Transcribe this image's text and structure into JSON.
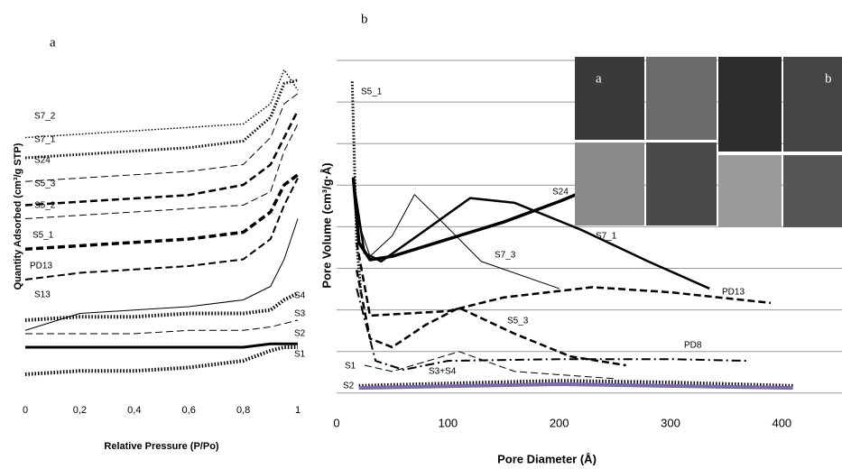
{
  "chart_data": [
    {
      "type": "line",
      "title": "a",
      "x_label": "Relative Pressure (P/Po)",
      "y_label": "Quantity Adsorbed (cm³/g STP)",
      "x": [
        0,
        0.2,
        0.4,
        0.6,
        0.8,
        0.9,
        0.95,
        1
      ],
      "xlim": [
        0,
        1
      ],
      "ylim": [
        0,
        100
      ],
      "xticks": [
        0,
        {
          "value": 0.2,
          "label": "0,2"
        },
        {
          "value": 0.4,
          "label": "0,4"
        },
        {
          "value": 0.6,
          "label": "0,6"
        },
        {
          "value": 0.8,
          "label": "0,8"
        },
        1
      ],
      "series": [
        {
          "name": "S7_2",
          "color": "#000000",
          "style": "dotted",
          "width": 1.5,
          "values": [
            74,
            75,
            76,
            77,
            78,
            84,
            94,
            88
          ]
        },
        {
          "name": "S7_1",
          "color": "#000000",
          "style": "dotted",
          "width": 3,
          "values": [
            68,
            69,
            70,
            71,
            73,
            80,
            90,
            91
          ]
        },
        {
          "name": "S24",
          "color": "#000000",
          "style": "dashed",
          "width": 1,
          "values": [
            61,
            62,
            63,
            64,
            66,
            74,
            84,
            87
          ]
        },
        {
          "name": "S5_3",
          "color": "#000000",
          "style": "dashed",
          "width": 2.5,
          "values": [
            54,
            55,
            56,
            57,
            60,
            66,
            74,
            82
          ]
        },
        {
          "name": "S5_2",
          "color": "#000000",
          "style": "dashed",
          "width": 1,
          "values": [
            50,
            51,
            52,
            53,
            54,
            58,
            70,
            78
          ]
        },
        {
          "name": "S5_1",
          "color": "#000000",
          "style": "dashed",
          "width": 3.5,
          "values": [
            41,
            42,
            43,
            44,
            46,
            52,
            60,
            63
          ]
        },
        {
          "name": "PD13",
          "color": "#000000",
          "style": "dashed",
          "width": 2,
          "values": [
            32,
            34,
            35,
            36,
            38,
            44,
            54,
            62
          ]
        },
        {
          "name": "S13",
          "color": "#000000",
          "style": "solid",
          "width": 1,
          "values": [
            17,
            22,
            23,
            24,
            26,
            30,
            38,
            50
          ]
        },
        {
          "name": "S4",
          "color": "#000000",
          "style": "dotted",
          "width": 4,
          "values": [
            20,
            21,
            21,
            22,
            22,
            23,
            26,
            28
          ]
        },
        {
          "name": "S3",
          "color": "#000000",
          "style": "dashed",
          "width": 1,
          "values": [
            16,
            16,
            16,
            17,
            17,
            18,
            19,
            20
          ]
        },
        {
          "name": "S2",
          "color": "#000000",
          "style": "solid",
          "width": 3,
          "values": [
            12,
            12,
            12,
            12,
            12,
            13,
            13,
            13
          ]
        },
        {
          "name": "S1",
          "color": "#000000",
          "style": "dotted",
          "width": 4,
          "values": [
            4,
            5,
            5,
            6,
            8,
            11,
            12,
            12
          ]
        }
      ]
    },
    {
      "type": "line",
      "title": "b",
      "x_label": "Pore Diameter (Å)",
      "y_label": "Pore Volume (cm³/g·Å)",
      "xlim": [
        0,
        450
      ],
      "ylim": [
        0,
        100
      ],
      "xticks": [
        0,
        100,
        200,
        300,
        400
      ],
      "grid": true,
      "series": [
        {
          "name": "S5_1",
          "color": "#000000",
          "style": "dotted",
          "width": 3,
          "x": [
            14,
            18,
            22
          ],
          "values": [
            92,
            45,
            30
          ]
        },
        {
          "name": "S24",
          "color": "#000000",
          "style": "solid",
          "width": 3.5,
          "x": [
            15,
            20,
            30,
            50,
            100,
            150,
            200,
            215
          ],
          "values": [
            64,
            45,
            40,
            41,
            46,
            51,
            57,
            59
          ]
        },
        {
          "name": "S7_1",
          "color": "#000000",
          "style": "solid",
          "width": 2.5,
          "x": [
            15,
            25,
            40,
            80,
            120,
            160,
            220,
            280,
            335
          ],
          "values": [
            63,
            42,
            39.5,
            48.7,
            58,
            56.6,
            48.7,
            39.5,
            31.6
          ]
        },
        {
          "name": "S7_3",
          "color": "#000000",
          "style": "solid",
          "width": 1,
          "x": [
            18,
            30,
            50,
            70,
            90,
            130,
            200
          ],
          "values": [
            52.6,
            41,
            47,
            59,
            52.6,
            39.5,
            31.6
          ]
        },
        {
          "name": "PD13",
          "color": "#000000",
          "style": "dashed",
          "width": 2.5,
          "x": [
            18,
            30,
            100,
            150,
            230,
            300,
            390
          ],
          "values": [
            45,
            23.7,
            25,
            29,
            32,
            30.5,
            27.4
          ]
        },
        {
          "name": "S5_3",
          "color": "#000000",
          "style": "dashed",
          "width": 2.5,
          "x": [
            18,
            30,
            50,
            80,
            110,
            160,
            210,
            260
          ],
          "values": [
            37,
            17,
            14.5,
            21,
            26,
            18.4,
            11.8,
            9.2
          ]
        },
        {
          "name": "PD8",
          "color": "#000000",
          "style": "dashdot",
          "width": 2,
          "x": [
            18,
            35,
            60,
            100,
            200,
            300,
            370
          ],
          "values": [
            31.6,
            10.5,
            7.9,
            10.5,
            11,
            11,
            10.5
          ]
        },
        {
          "name": "S1",
          "color": "#000000",
          "style": "dashed",
          "width": 1,
          "x": [
            25,
            50,
            110,
            160,
            250
          ],
          "values": [
            9.2,
            7.4,
            13.2,
            7.4,
            5.3
          ]
        },
        {
          "name": "S3+S4",
          "color": "#000000",
          "style": "dotted",
          "width": 4,
          "x": [
            20,
            100,
            200,
            300,
            410
          ],
          "values": [
            3.2,
            3.9,
            4.7,
            4.2,
            3.2
          ]
        },
        {
          "name": "S2",
          "color": "#7b6ba8",
          "style": "solid",
          "width": 4,
          "x": [
            20,
            200,
            410
          ],
          "values": [
            2.6,
            3.7,
            2.6
          ]
        }
      ]
    }
  ],
  "insets": {
    "labels": [
      "a",
      "b"
    ]
  }
}
